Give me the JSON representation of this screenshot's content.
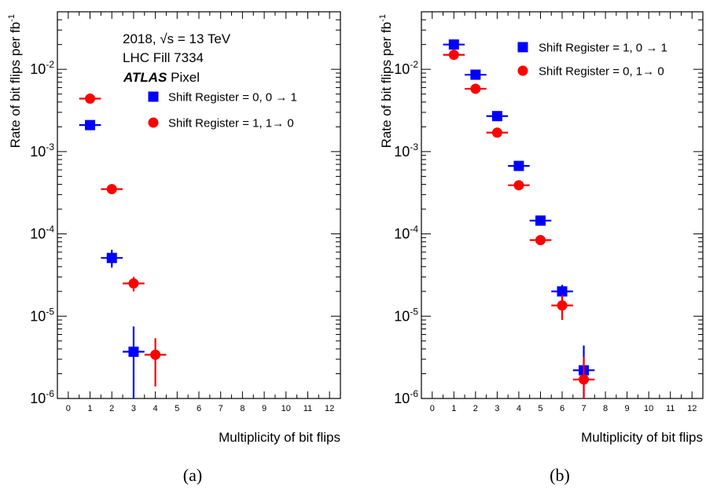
{
  "chart_data": [
    {
      "panel_label": "(a)",
      "type": "scatter",
      "xlabel": "Multiplicity of bit flips",
      "ylabel": "Rate of bit flips per fb",
      "ylabel_superscript": "-1",
      "xlim": [
        -0.5,
        12.5
      ],
      "ylim": [
        1e-06,
        0.05
      ],
      "yscale": "log",
      "x_ticks": [
        "0",
        "1",
        "2",
        "3",
        "4",
        "5",
        "6",
        "7",
        "8",
        "9",
        "10",
        "11",
        "12"
      ],
      "y_ticks": [
        {
          "value": 1e-06,
          "base": "10",
          "exp": "-6"
        },
        {
          "value": 1e-05,
          "base": "10",
          "exp": "-5"
        },
        {
          "value": 0.0001,
          "base": "10",
          "exp": "-4"
        },
        {
          "value": 0.001,
          "base": "10",
          "exp": "-3"
        },
        {
          "value": 0.01,
          "base": "10",
          "exp": "-2"
        }
      ],
      "annotations": {
        "energy_line_pre": "2018,",
        "energy_sqrt": "√s",
        "energy_line_post": "= 13 TeV",
        "fill_line": "LHC Fill 7334",
        "atlas": "ATLAS",
        "atlas_suffix": "Pixel"
      },
      "legend_position": "upper-right",
      "series": [
        {
          "name": "Shift Register = 0, 0 → 1",
          "marker": "square",
          "color": "#0000ff",
          "points": [
            {
              "x": 1,
              "y": 0.0021,
              "ylo": 0.0021,
              "yhi": 0.0021
            },
            {
              "x": 2,
              "y": 5.1e-05,
              "ylo": 3.9e-05,
              "yhi": 6.4e-05
            },
            {
              "x": 3,
              "y": 3.7e-06,
              "ylo": 1e-06,
              "yhi": 7.5e-06
            }
          ]
        },
        {
          "name": "Shift Register = 1, 1→ 0",
          "marker": "circle",
          "color": "#ff0000",
          "points": [
            {
              "x": 1,
              "y": 0.0044,
              "ylo": 0.0044,
              "yhi": 0.0044
            },
            {
              "x": 2,
              "y": 0.00035,
              "ylo": 0.00035,
              "yhi": 0.00035
            },
            {
              "x": 3,
              "y": 2.5e-05,
              "ylo": 2e-05,
              "yhi": 3e-05
            },
            {
              "x": 4,
              "y": 3.4e-06,
              "ylo": 1.4e-06,
              "yhi": 5.4e-06
            }
          ]
        }
      ]
    },
    {
      "panel_label": "(b)",
      "type": "scatter",
      "xlabel": "Multiplicity of bit flips",
      "ylabel": "Rate of bit flips per fb",
      "ylabel_superscript": "-1",
      "xlim": [
        -0.5,
        12.5
      ],
      "ylim": [
        1e-06,
        0.05
      ],
      "yscale": "log",
      "x_ticks": [
        "0",
        "1",
        "2",
        "3",
        "4",
        "5",
        "6",
        "7",
        "8",
        "9",
        "10",
        "11",
        "12"
      ],
      "y_ticks": [
        {
          "value": 1e-06,
          "base": "10",
          "exp": "-6"
        },
        {
          "value": 1e-05,
          "base": "10",
          "exp": "-5"
        },
        {
          "value": 0.0001,
          "base": "10",
          "exp": "-4"
        },
        {
          "value": 0.001,
          "base": "10",
          "exp": "-3"
        },
        {
          "value": 0.01,
          "base": "10",
          "exp": "-2"
        }
      ],
      "legend_position": "upper-right",
      "series": [
        {
          "name": "Shift Register = 1, 0 → 1",
          "marker": "square",
          "color": "#0000ff",
          "points": [
            {
              "x": 1,
              "y": 0.02,
              "ylo": 0.02,
              "yhi": 0.02
            },
            {
              "x": 2,
              "y": 0.0086,
              "ylo": 0.0086,
              "yhi": 0.0086
            },
            {
              "x": 3,
              "y": 0.0027,
              "ylo": 0.0027,
              "yhi": 0.0027
            },
            {
              "x": 4,
              "y": 0.00067,
              "ylo": 0.00067,
              "yhi": 0.00067
            },
            {
              "x": 5,
              "y": 0.000145,
              "ylo": 0.000145,
              "yhi": 0.000145
            },
            {
              "x": 6,
              "y": 2e-05,
              "ylo": 1.6e-05,
              "yhi": 2.4e-05
            },
            {
              "x": 7,
              "y": 2.2e-06,
              "ylo": 1e-06,
              "yhi": 4.4e-06
            }
          ]
        },
        {
          "name": "Shift Register = 0, 1→ 0",
          "marker": "circle",
          "color": "#ff0000",
          "points": [
            {
              "x": 1,
              "y": 0.015,
              "ylo": 0.015,
              "yhi": 0.015
            },
            {
              "x": 2,
              "y": 0.0058,
              "ylo": 0.0058,
              "yhi": 0.0058
            },
            {
              "x": 3,
              "y": 0.0017,
              "ylo": 0.0017,
              "yhi": 0.0017
            },
            {
              "x": 4,
              "y": 0.00039,
              "ylo": 0.00039,
              "yhi": 0.00039
            },
            {
              "x": 5,
              "y": 8.4e-05,
              "ylo": 8.4e-05,
              "yhi": 8.4e-05
            },
            {
              "x": 6,
              "y": 1.35e-05,
              "ylo": 9e-06,
              "yhi": 1.8e-05
            },
            {
              "x": 7,
              "y": 1.7e-06,
              "ylo": 1e-06,
              "yhi": 3.2e-06
            }
          ]
        }
      ]
    }
  ]
}
